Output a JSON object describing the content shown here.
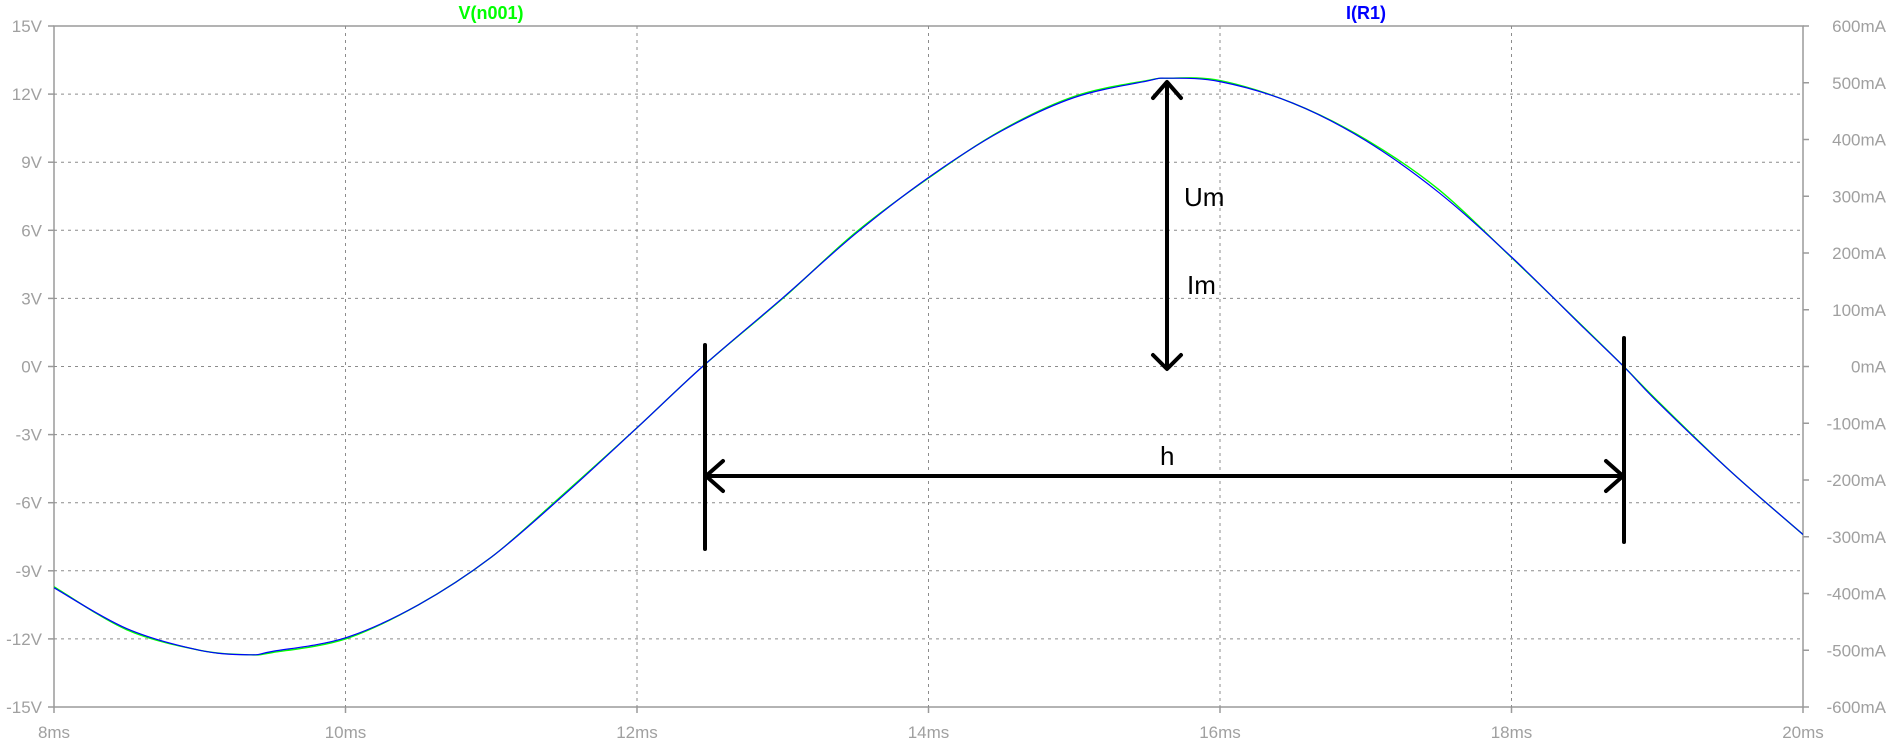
{
  "chart_data": {
    "type": "line",
    "x_unit": "ms",
    "xlim": [
      8,
      20
    ],
    "x_ticks": [
      "8ms",
      "10ms",
      "12ms",
      "14ms",
      "16ms",
      "18ms",
      "20ms"
    ],
    "ylim_left": [
      -15,
      15
    ],
    "y_ticks_left": [
      "15V",
      "12V",
      "9V",
      "6V",
      "3V",
      "0V",
      "-3V",
      "-6V",
      "-9V",
      "-12V",
      "-15V"
    ],
    "ylim_right": [
      -600,
      600
    ],
    "y_ticks_right": [
      "600mA",
      "500mA",
      "400mA",
      "300mA",
      "200mA",
      "100mA",
      "0mA",
      "-100mA",
      "-200mA",
      "-300mA",
      "-400mA",
      "-500mA",
      "-600mA"
    ],
    "grid": true,
    "series": [
      {
        "name": "V(n001)",
        "color": "#00ff00",
        "axis": "left"
      },
      {
        "name": "I(R1)",
        "color": "#0000ff",
        "axis": "right"
      }
    ],
    "x": [
      8.0,
      8.5,
      9.0,
      9.34,
      9.5,
      10.0,
      10.5,
      11.0,
      11.5,
      12.0,
      12.45,
      13.0,
      13.5,
      14.0,
      14.5,
      15.0,
      15.5,
      15.64,
      16.0,
      16.5,
      17.0,
      17.5,
      18.0,
      18.5,
      18.77,
      19.0,
      19.5,
      20.0
    ],
    "values_V": [
      -9.7,
      -11.6,
      -12.5,
      -12.7,
      -12.6,
      -12.0,
      -10.5,
      -8.4,
      -5.6,
      -2.7,
      0.0,
      3.0,
      5.9,
      8.3,
      10.4,
      11.9,
      12.6,
      12.7,
      12.6,
      11.6,
      10.0,
      7.8,
      4.8,
      1.7,
      0.0,
      -1.5,
      -4.6,
      -7.4
    ],
    "values_I_mA": [
      -390,
      -462,
      -500,
      -508,
      -502,
      -478,
      -420,
      -336,
      -226,
      -108,
      0,
      121,
      234,
      333,
      415,
      474,
      503,
      508,
      502,
      464,
      398,
      307,
      193,
      67,
      0,
      -62,
      -184,
      -296
    ],
    "annotations": [
      "Um",
      "Im",
      "h"
    ]
  }
}
